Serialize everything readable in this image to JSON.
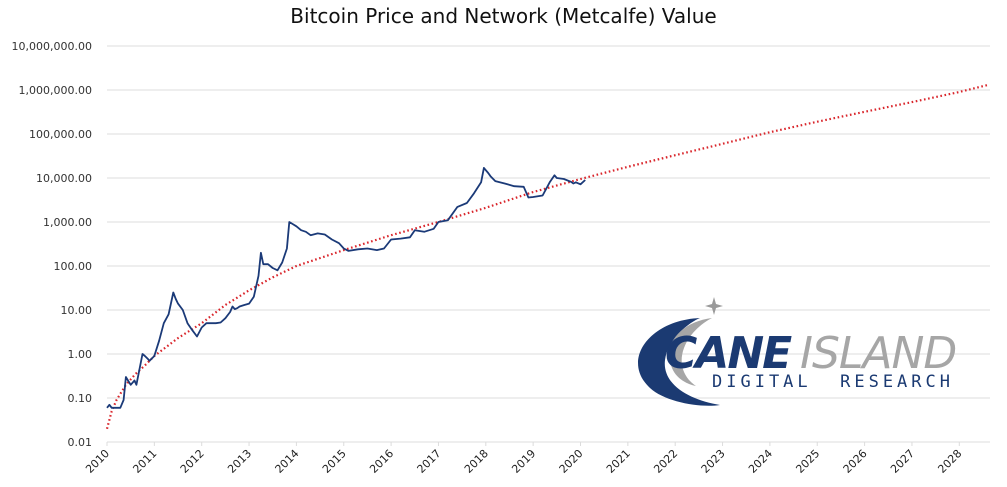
{
  "chart_data": {
    "type": "line",
    "title": "Bitcoin Price and Network (Metcalfe) Value",
    "xlabel": "",
    "ylabel": "",
    "y_scale": "log",
    "ylim": [
      0.01,
      10000000
    ],
    "xlim": [
      2010.0,
      2028.6
    ],
    "grid": true,
    "y_ticks": [
      "10,000,000.00",
      "1,000,000.00",
      "100,000.00",
      "10,000.00",
      "1,000.00",
      "100.00",
      "10.00",
      "1.00",
      "0.10",
      "0.01"
    ],
    "y_tick_values": [
      10000000,
      1000000,
      100000,
      10000,
      1000,
      100,
      10,
      1,
      0.1,
      0.01
    ],
    "x_ticks": [
      "2010",
      "2011",
      "2012",
      "2013",
      "2014",
      "2015",
      "2016",
      "2017",
      "2018",
      "2019",
      "2020",
      "2021",
      "2022",
      "2023",
      "2024",
      "2025",
      "2026",
      "2027",
      "2028"
    ],
    "series": [
      {
        "name": "Bitcoin Price",
        "style": "solid",
        "color": "#1b3a78",
        "x": [
          2010.0,
          2010.05,
          2010.1,
          2010.2,
          2010.28,
          2010.35,
          2010.4,
          2010.5,
          2010.58,
          2010.62,
          2010.75,
          2010.8,
          2010.85,
          2010.9,
          2011.0,
          2011.1,
          2011.2,
          2011.3,
          2011.4,
          2011.45,
          2011.5,
          2011.6,
          2011.7,
          2011.8,
          2011.9,
          2012.0,
          2012.1,
          2012.2,
          2012.3,
          2012.4,
          2012.5,
          2012.6,
          2012.65,
          2012.7,
          2012.75,
          2012.8,
          2012.9,
          2013.0,
          2013.1,
          2013.2,
          2013.25,
          2013.3,
          2013.4,
          2013.5,
          2013.6,
          2013.7,
          2013.8,
          2013.85,
          2013.92,
          2014.0,
          2014.1,
          2014.2,
          2014.3,
          2014.45,
          2014.6,
          2014.75,
          2014.9,
          2015.0,
          2015.1,
          2015.3,
          2015.5,
          2015.7,
          2015.85,
          2016.0,
          2016.2,
          2016.4,
          2016.5,
          2016.7,
          2016.9,
          2017.0,
          2017.2,
          2017.4,
          2017.6,
          2017.75,
          2017.9,
          2017.96,
          2018.05,
          2018.1,
          2018.2,
          2018.4,
          2018.6,
          2018.8,
          2018.9,
          2019.0,
          2019.2,
          2019.35,
          2019.45,
          2019.5,
          2019.65,
          2019.8,
          2019.85,
          2019.9,
          2020.0,
          2020.1
        ],
        "y": [
          0.06,
          0.07,
          0.06,
          0.06,
          0.06,
          0.09,
          0.3,
          0.2,
          0.25,
          0.2,
          1.0,
          0.9,
          0.8,
          0.7,
          0.9,
          2.0,
          5.0,
          8.0,
          25.0,
          18.0,
          14.0,
          10.0,
          5.0,
          3.5,
          2.5,
          4.0,
          5.0,
          5.0,
          5.0,
          5.2,
          6.5,
          9.0,
          12.0,
          10.5,
          11.0,
          12.0,
          13.0,
          14.0,
          20.0,
          60.0,
          200.0,
          110.0,
          110.0,
          90.0,
          80.0,
          120.0,
          250.0,
          1000.0,
          900.0,
          800.0,
          650.0,
          600.0,
          500.0,
          550.0,
          520.0,
          400.0,
          330.0,
          250.0,
          220.0,
          240.0,
          250.0,
          230.0,
          250.0,
          400.0,
          420.0,
          450.0,
          650.0,
          600.0,
          700.0,
          1000.0,
          1100.0,
          2200.0,
          2700.0,
          4500.0,
          8000.0,
          17000.0,
          13000.0,
          11000.0,
          8500.0,
          7500.0,
          6500.0,
          6300.0,
          3600.0,
          3700.0,
          4000.0,
          8000.0,
          11500.0,
          10000.0,
          9500.0,
          8200.0,
          7500.0,
          8000.0,
          7200.0,
          9000.0
        ],
        "y_extra_note": "approximate values read from log-scale chart"
      },
      {
        "name": "Network (Metcalfe) Value",
        "style": "dotted",
        "color": "#d9252b",
        "x": [
          2010.0,
          2010.1,
          2010.2,
          2010.4,
          2010.6,
          2010.8,
          2011.0,
          2011.5,
          2012.0,
          2012.5,
          2013.0,
          2013.5,
          2014.0,
          2015.0,
          2016.0,
          2017.0,
          2018.0,
          2019.0,
          2020.0,
          2021.0,
          2022.0,
          2023.0,
          2024.0,
          2025.0,
          2026.0,
          2027.0,
          2028.0,
          2028.6
        ],
        "y": [
          0.02,
          0.05,
          0.09,
          0.2,
          0.35,
          0.55,
          0.9,
          2.3,
          5.0,
          13.0,
          28.0,
          55.0,
          100.0,
          230.0,
          500.0,
          1000.0,
          2100.0,
          4800.0,
          9500.0,
          18000.0,
          33000.0,
          60000.0,
          110000.0,
          190000.0,
          320000.0,
          530000.0,
          900000.0,
          1300000.0
        ]
      }
    ]
  },
  "logo": {
    "word1": "CANE",
    "word2": "ISLAND",
    "subtitle": "DIGITAL  RESEARCH"
  }
}
